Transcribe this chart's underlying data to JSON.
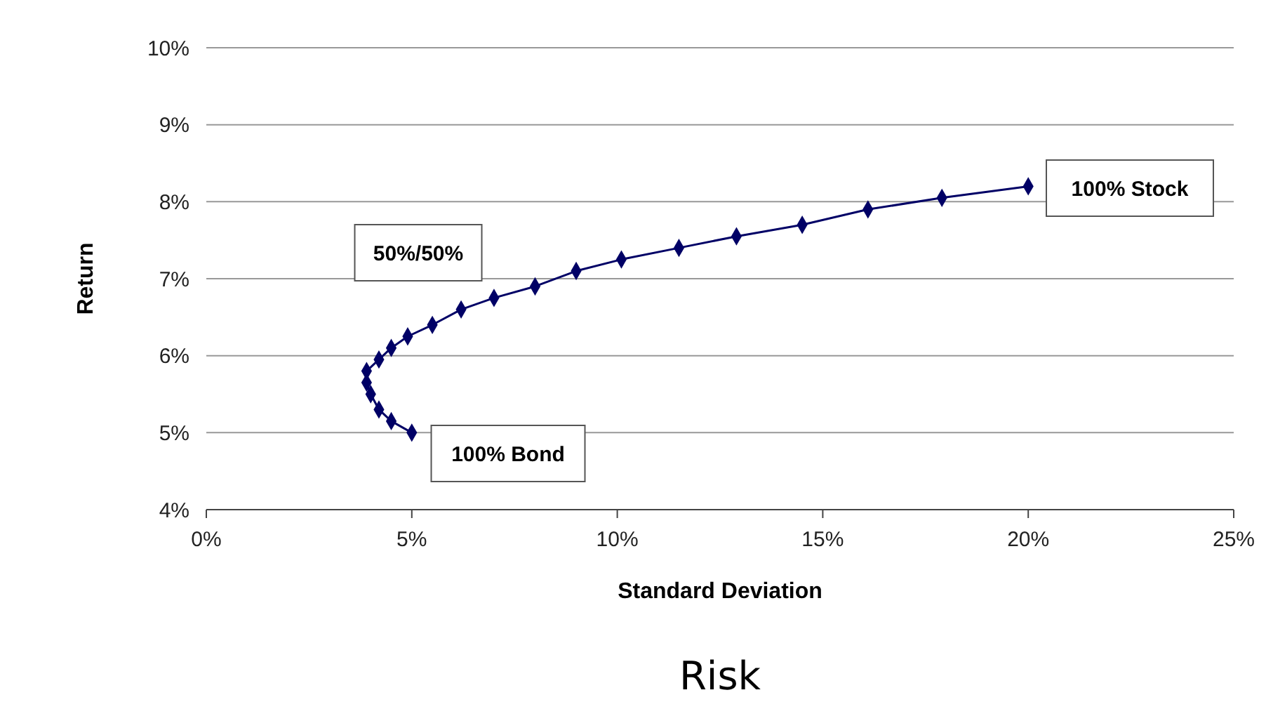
{
  "chart_data": {
    "type": "line",
    "xlabel": "Standard Deviation",
    "ylabel": "Return",
    "series": [
      {
        "color": "#000066",
        "x": [
          5.0,
          4.5,
          4.2,
          4.0,
          3.9,
          3.9,
          4.2,
          4.5,
          4.9,
          5.5,
          6.2,
          7.0,
          8.0,
          9.0,
          10.1,
          11.5,
          12.9,
          14.5,
          16.1,
          17.9,
          20.0
        ],
        "values": [
          5.0,
          5.15,
          5.3,
          5.5,
          5.65,
          5.8,
          5.95,
          6.1,
          6.25,
          6.4,
          6.6,
          6.75,
          6.9,
          7.1,
          7.25,
          7.4,
          7.55,
          7.7,
          7.9,
          8.05,
          8.2
        ]
      }
    ],
    "xlim": [
      0,
      25
    ],
    "xticks": [
      {
        "value": 0,
        "label": "0%"
      },
      {
        "value": 5,
        "label": "5%"
      },
      {
        "value": 10,
        "label": "10%"
      },
      {
        "value": 15,
        "label": "15%"
      },
      {
        "value": 20,
        "label": "20%"
      },
      {
        "value": 25,
        "label": "25%"
      }
    ],
    "ylim": [
      4,
      10
    ],
    "yticks": [
      {
        "value": 4,
        "label": "4%"
      },
      {
        "value": 5,
        "label": "5%"
      },
      {
        "value": 6,
        "label": "6%"
      },
      {
        "value": 7,
        "label": "7%"
      },
      {
        "value": 8,
        "label": "8%"
      },
      {
        "value": 9,
        "label": "9%"
      },
      {
        "value": 10,
        "label": "10%"
      }
    ],
    "grid": "y",
    "marker": "diamond",
    "line_style": "solid",
    "annotations": [
      "50%/50%",
      "100% Bond",
      "100% Stock",
      "Risk"
    ]
  }
}
